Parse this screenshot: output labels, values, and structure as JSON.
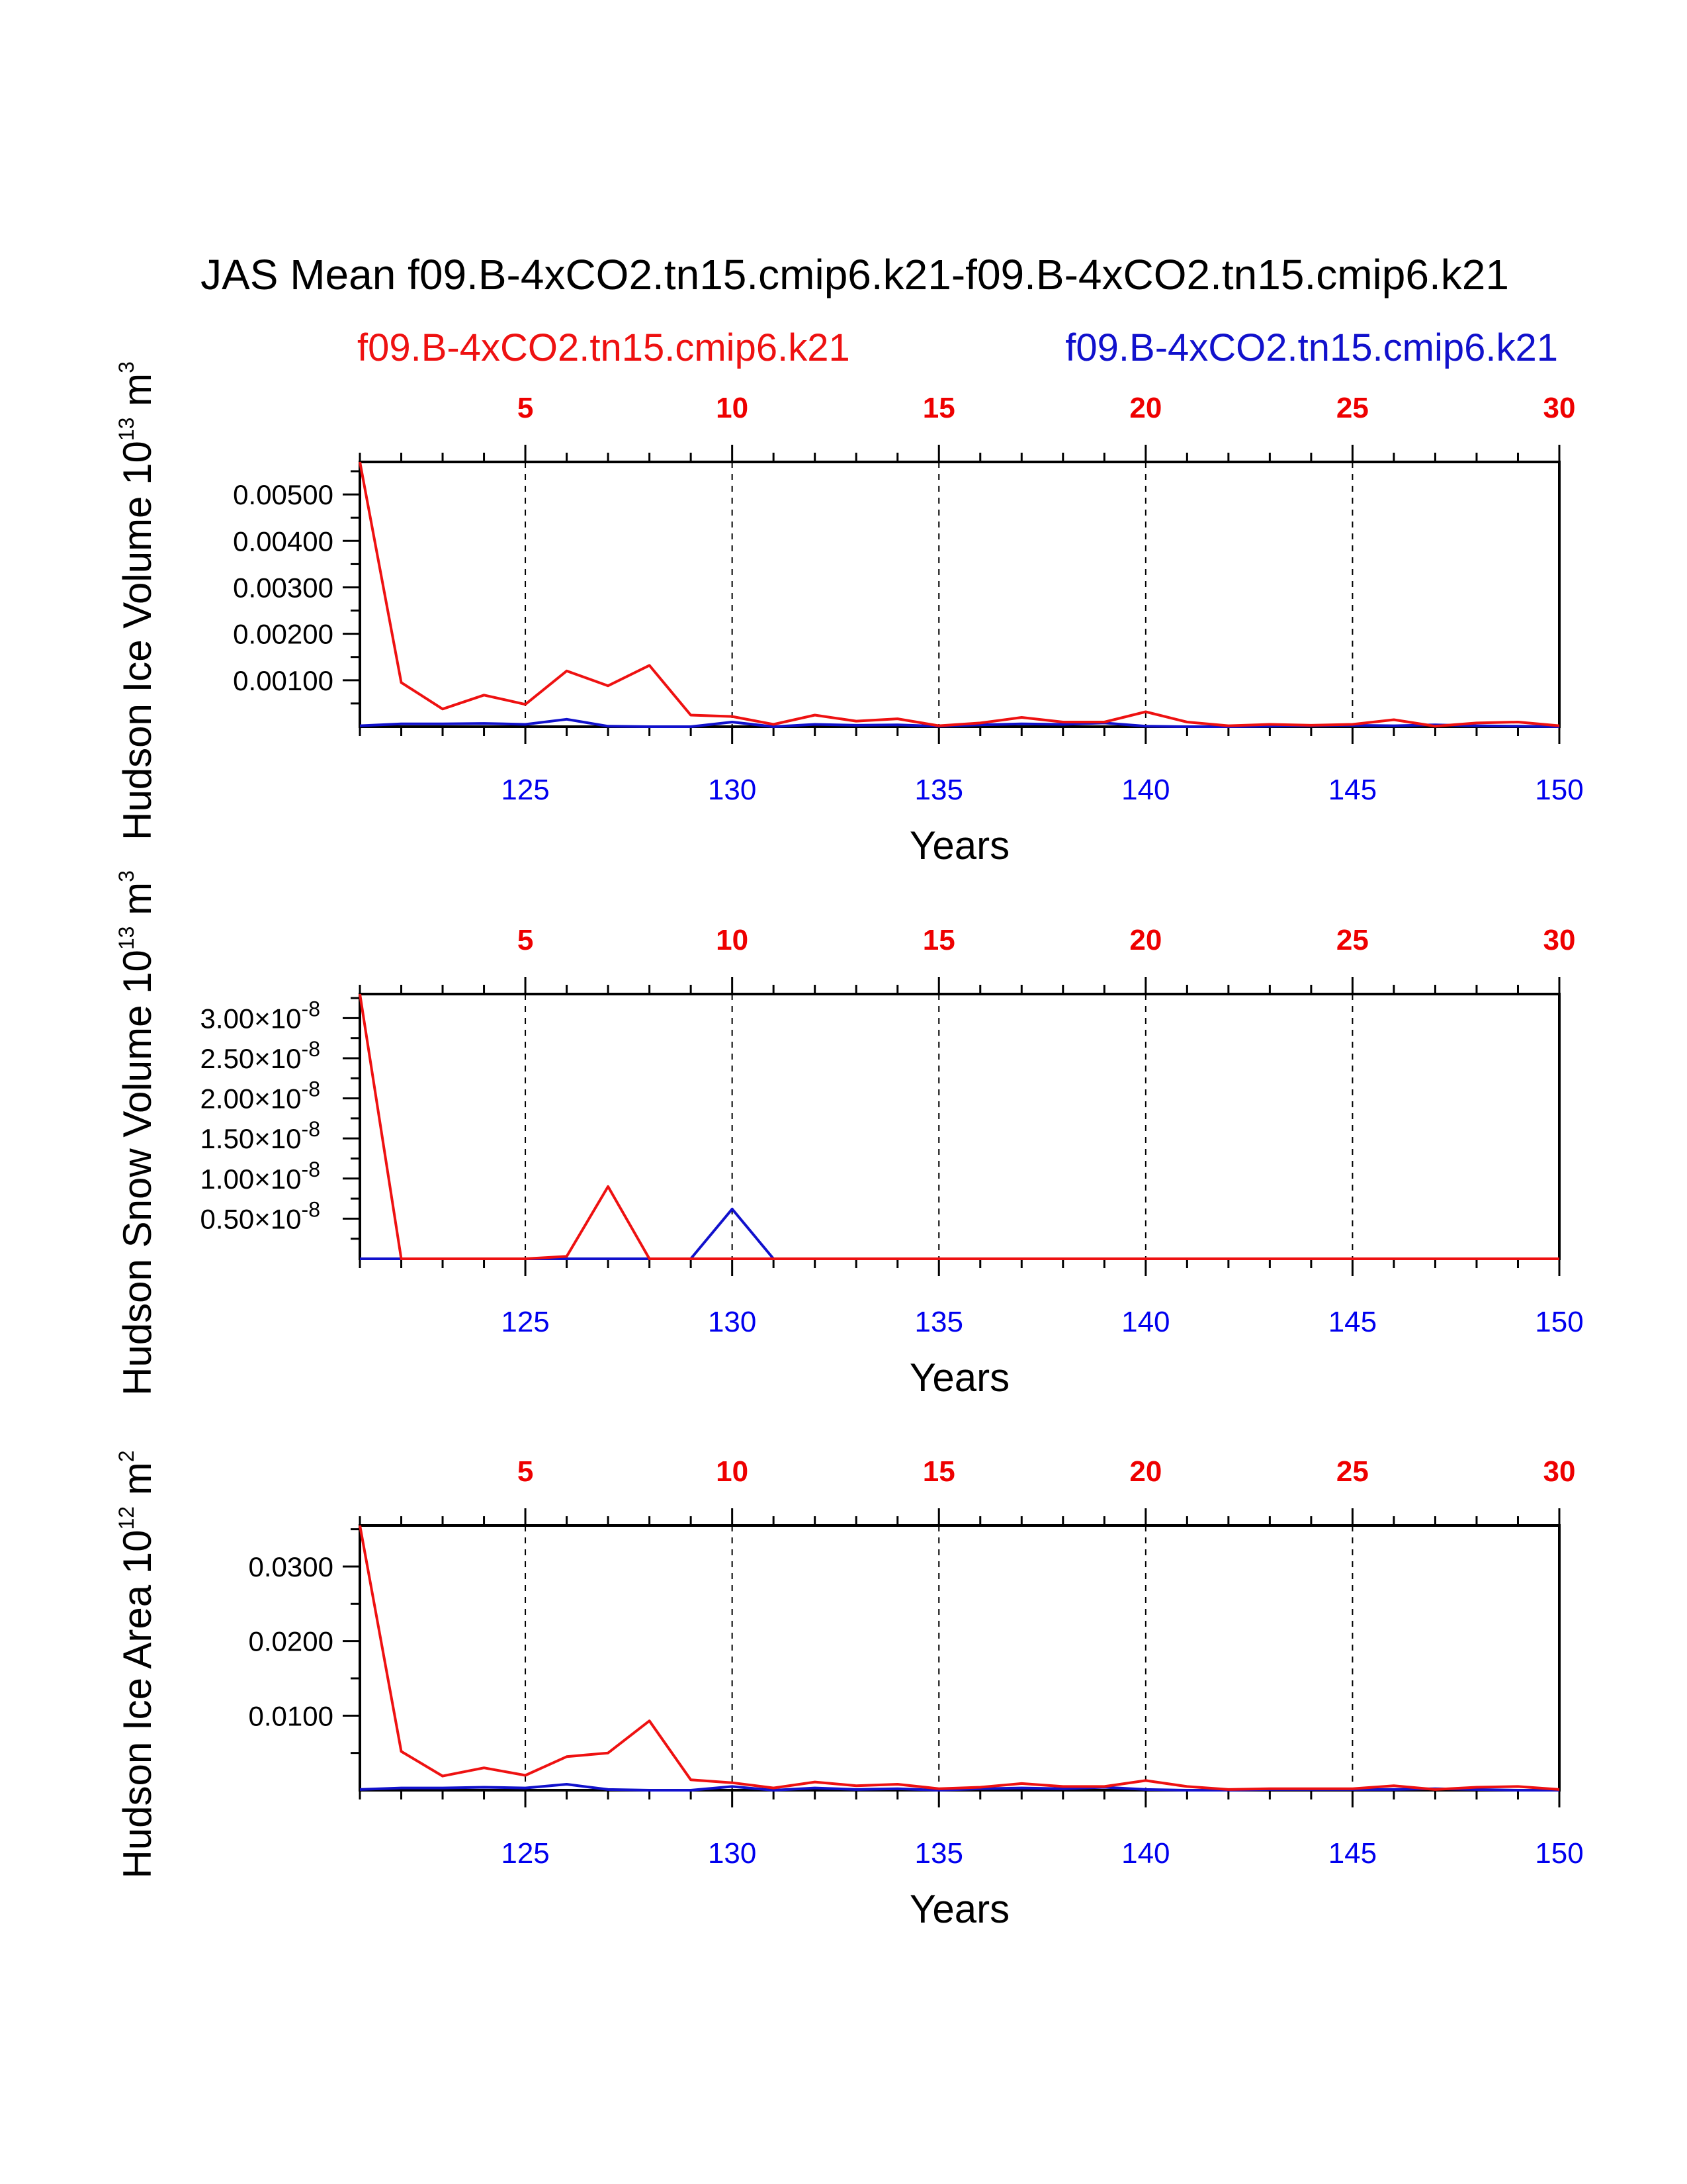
{
  "colors": {
    "red": "#ee1111",
    "blue": "#1111cc",
    "top_tick_color": "#ee0000",
    "bottom_tick_color": "#0000ee"
  },
  "title": "JAS Mean f09.B-4xCO2.tn15.cmip6.k21-f09.B-4xCO2.tn15.cmip6.k21",
  "legend": {
    "red_label": "f09.B-4xCO2.tn15.cmip6.k21",
    "blue_label": "f09.B-4xCO2.tn15.cmip6.k21"
  },
  "chart_data": [
    {
      "type": "line",
      "ylabel_main": "Hudson Ice Volume 10",
      "ylabel_exp": "13",
      "ylabel_unit": " m",
      "ylabel_unit_exp": "3",
      "xlabel": "Years",
      "ylim": [
        0,
        0.0057
      ],
      "xlim": [
        121,
        150
      ],
      "yticks": [
        0.001,
        0.002,
        0.003,
        0.004,
        0.005
      ],
      "ytick_labels": [
        "0.00100",
        "0.00200",
        "0.00300",
        "0.00400",
        "0.00500"
      ],
      "top_axis_ticks": [
        5,
        10,
        15,
        20,
        25,
        30
      ],
      "bottom_axis_ticks": [
        125,
        130,
        135,
        140,
        145,
        150
      ],
      "x": [
        121,
        122,
        123,
        124,
        125,
        126,
        127,
        128,
        129,
        130,
        131,
        132,
        133,
        134,
        135,
        136,
        137,
        138,
        139,
        140,
        141,
        142,
        143,
        144,
        145,
        146,
        147,
        148,
        149,
        150
      ],
      "series": [
        {
          "name": "f09.B-4xCO2.tn15.cmip6.k21",
          "color": "red",
          "values": [
            0.0057,
            0.00095,
            0.00038,
            0.00068,
            0.00048,
            0.0012,
            0.00088,
            0.00132,
            0.00025,
            0.00022,
            5e-05,
            0.00025,
            0.00012,
            0.00017,
            2e-05,
            8e-05,
            0.0002,
            0.0001,
            0.0001,
            0.00032,
            0.0001,
            2e-05,
            5e-05,
            3e-05,
            5e-05,
            0.00015,
            1e-05,
            8e-05,
            0.0001,
            2e-05
          ]
        },
        {
          "name": "f09.B-4xCO2.tn15.cmip6.k21",
          "color": "blue",
          "values": [
            2e-05,
            6e-05,
            6e-05,
            7e-05,
            5e-05,
            0.00016,
            1e-05,
            0.0,
            0.0,
            0.0001,
            0.0,
            5e-05,
            3e-05,
            4e-05,
            1e-05,
            4e-05,
            6e-05,
            5e-05,
            8e-05,
            1e-05,
            0.0,
            0.0,
            1e-05,
            2e-05,
            3e-05,
            2e-05,
            4e-05,
            2e-05,
            1e-05,
            0.0
          ]
        }
      ]
    },
    {
      "type": "line",
      "ylabel_main": "Hudson Snow Volume 10",
      "ylabel_exp": "13",
      "ylabel_unit": " m",
      "ylabel_unit_exp": "3",
      "xlabel": "Years",
      "ylim": [
        0,
        3.3e-08
      ],
      "xlim": [
        121,
        150
      ],
      "yticks": [
        5e-09,
        1e-08,
        1.5e-08,
        2e-08,
        2.5e-08,
        3e-08
      ],
      "ytick_labels": [
        "0.50×10",
        "1.00×10",
        "1.50×10",
        "2.00×10",
        "2.50×10",
        "3.00×10"
      ],
      "ytick_exp": "-8",
      "top_axis_ticks": [
        5,
        10,
        15,
        20,
        25,
        30
      ],
      "bottom_axis_ticks": [
        125,
        130,
        135,
        140,
        145,
        150
      ],
      "x": [
        121,
        122,
        123,
        124,
        125,
        126,
        127,
        128,
        129,
        130,
        131,
        132,
        133,
        134,
        135,
        136,
        137,
        138,
        139,
        140,
        141,
        142,
        143,
        144,
        145,
        146,
        147,
        148,
        149,
        150
      ],
      "series": [
        {
          "name": "f09.B-4xCO2.tn15.cmip6.k21",
          "color": "red",
          "values": [
            3.3e-08,
            0,
            0,
            0,
            0,
            3e-10,
            9e-09,
            0,
            0,
            0,
            0,
            0,
            0,
            0,
            0,
            0,
            0,
            0,
            0,
            0,
            0,
            0,
            0,
            0,
            0,
            0,
            0,
            0,
            0,
            0
          ]
        },
        {
          "name": "f09.B-4xCO2.tn15.cmip6.k21",
          "color": "blue",
          "values": [
            0,
            0,
            0,
            0,
            0,
            0,
            0,
            0,
            0,
            6.2e-09,
            0,
            0,
            0,
            0,
            0,
            0,
            0,
            0,
            0,
            0,
            0,
            0,
            0,
            0,
            0,
            0,
            0,
            0,
            0,
            0
          ]
        }
      ]
    },
    {
      "type": "line",
      "ylabel_main": "Hudson Ice Area 10",
      "ylabel_exp": "12",
      "ylabel_unit": " m",
      "ylabel_unit_exp": "2",
      "xlabel": "Years",
      "ylim": [
        0,
        0.0355
      ],
      "xlim": [
        121,
        150
      ],
      "yticks": [
        0.01,
        0.02,
        0.03
      ],
      "ytick_labels": [
        "0.0100",
        "0.0200",
        "0.0300"
      ],
      "top_axis_ticks": [
        5,
        10,
        15,
        20,
        25,
        30
      ],
      "bottom_axis_ticks": [
        125,
        130,
        135,
        140,
        145,
        150
      ],
      "x": [
        121,
        122,
        123,
        124,
        125,
        126,
        127,
        128,
        129,
        130,
        131,
        132,
        133,
        134,
        135,
        136,
        137,
        138,
        139,
        140,
        141,
        142,
        143,
        144,
        145,
        146,
        147,
        148,
        149,
        150
      ],
      "series": [
        {
          "name": "f09.B-4xCO2.tn15.cmip6.k21",
          "color": "red",
          "values": [
            0.0355,
            0.0052,
            0.0019,
            0.003,
            0.002,
            0.0045,
            0.005,
            0.0093,
            0.0014,
            0.001,
            0.0003,
            0.0011,
            0.0006,
            0.0008,
            0.0002,
            0.0004,
            0.0009,
            0.0005,
            0.0005,
            0.0013,
            0.0005,
            0.0001,
            0.0002,
            0.0002,
            0.0002,
            0.0006,
            0.0001,
            0.0004,
            0.0005,
            0.0001
          ]
        },
        {
          "name": "f09.B-4xCO2.tn15.cmip6.k21",
          "color": "blue",
          "values": [
            0.0001,
            0.0003,
            0.0003,
            0.0004,
            0.0003,
            0.0008,
            0.0001,
            0.0,
            0.0,
            0.0005,
            0.0,
            0.0003,
            0.0001,
            0.0002,
            0.0,
            0.0002,
            0.0003,
            0.0002,
            0.0004,
            0.0001,
            0.0,
            0.0,
            0.0001,
            0.0001,
            0.0001,
            0.0001,
            0.0002,
            0.0001,
            0.0,
            0.0
          ]
        }
      ]
    }
  ]
}
